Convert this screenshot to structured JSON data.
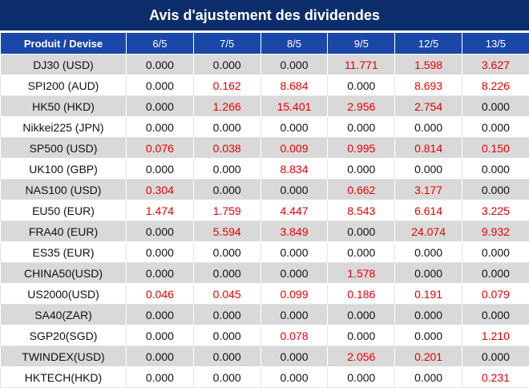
{
  "title": "Avis d'ajustement des dividendes",
  "colors": {
    "title_bg": "#0c2d6b",
    "header_bg": "#1a47a8",
    "alt_row": "#d9d9d9",
    "positive": "#e60000"
  },
  "header": [
    "Produit / Devise",
    "6/5",
    "7/5",
    "8/5",
    "9/5",
    "12/5",
    "13/5"
  ],
  "rows": [
    {
      "product": "DJ30 (USD)",
      "values": [
        "0.000",
        "0.000",
        "0.000",
        "11.771",
        "1.598",
        "3.627"
      ]
    },
    {
      "product": "SPI200 (AUD)",
      "values": [
        "0.000",
        "0.162",
        "8.684",
        "0.000",
        "8.693",
        "8.226"
      ]
    },
    {
      "product": "HK50 (HKD)",
      "values": [
        "0.000",
        "1.266",
        "15.401",
        "2.956",
        "2.754",
        "0.000"
      ]
    },
    {
      "product": "Nikkei225 (JPN)",
      "values": [
        "0.000",
        "0.000",
        "0.000",
        "0.000",
        "0.000",
        "0.000"
      ]
    },
    {
      "product": "SP500 (USD)",
      "values": [
        "0.076",
        "0.038",
        "0.009",
        "0.995",
        "0.814",
        "0.150"
      ]
    },
    {
      "product": "UK100 (GBP)",
      "values": [
        "0.000",
        "0.000",
        "8.834",
        "0.000",
        "0.000",
        "0.000"
      ]
    },
    {
      "product": "NAS100 (USD)",
      "values": [
        "0.304",
        "0.000",
        "0.000",
        "0.662",
        "3.177",
        "0.000"
      ]
    },
    {
      "product": "EU50 (EUR)",
      "values": [
        "1.474",
        "1.759",
        "4.447",
        "8.543",
        "6.614",
        "3.225"
      ]
    },
    {
      "product": "FRA40 (EUR)",
      "values": [
        "0.000",
        "5.594",
        "3.849",
        "0.000",
        "24.074",
        "9.932"
      ]
    },
    {
      "product": "ES35 (EUR)",
      "values": [
        "0.000",
        "0.000",
        "0.000",
        "0.000",
        "0.000",
        "0.000"
      ]
    },
    {
      "product": "CHINA50(USD)",
      "values": [
        "0.000",
        "0.000",
        "0.000",
        "1.578",
        "0.000",
        "0.000"
      ]
    },
    {
      "product": "US2000(USD)",
      "values": [
        "0.046",
        "0.045",
        "0.099",
        "0.186",
        "0.191",
        "0.079"
      ]
    },
    {
      "product": "SA40(ZAR)",
      "values": [
        "0.000",
        "0.000",
        "0.000",
        "0.000",
        "0.000",
        "0.000"
      ]
    },
    {
      "product": "SGP20(SGD)",
      "values": [
        "0.000",
        "0.000",
        "0.078",
        "0.000",
        "0.000",
        "1.210"
      ]
    },
    {
      "product": "TWINDEX(USD)",
      "values": [
        "0.000",
        "0.000",
        "0.000",
        "2.056",
        "0.201",
        "0.000"
      ]
    },
    {
      "product": "HKTECH(HKD)",
      "values": [
        "0.000",
        "0.000",
        "0.000",
        "0.000",
        "0.000",
        "0.231"
      ]
    }
  ]
}
